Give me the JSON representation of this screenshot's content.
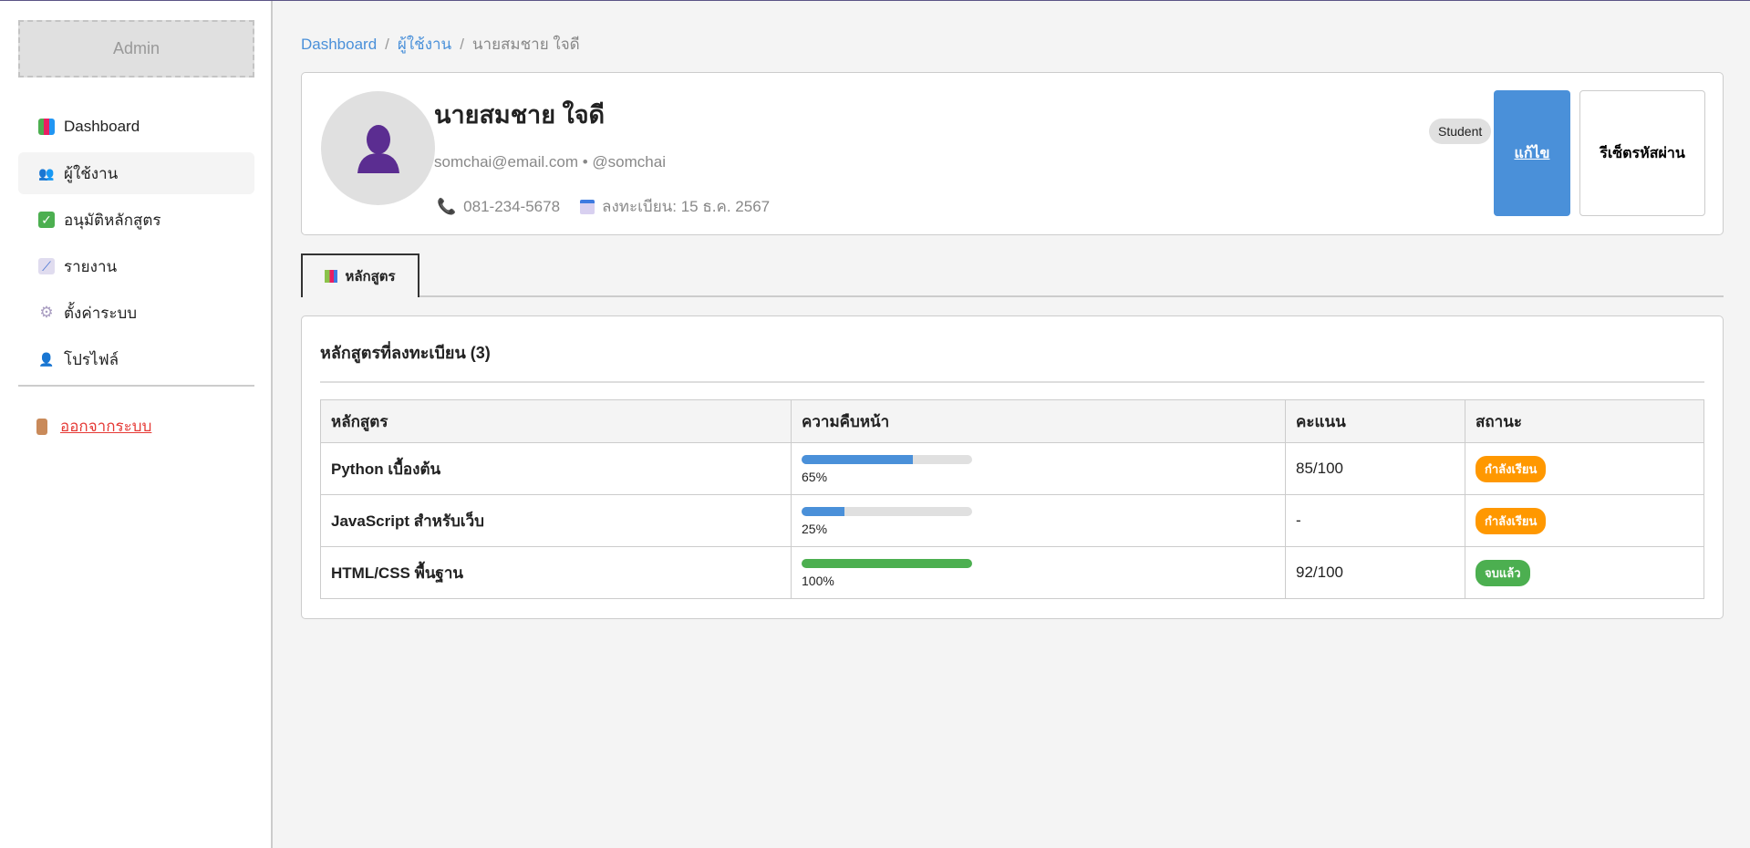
{
  "sidebar": {
    "logo": "Admin",
    "items": [
      {
        "label": "Dashboard",
        "icon": "bar-chart-icon"
      },
      {
        "label": "ผู้ใช้งาน",
        "icon": "users-icon",
        "active": true
      },
      {
        "label": "อนุมัติหลักสูตร",
        "icon": "check-icon"
      },
      {
        "label": "รายงาน",
        "icon": "line-chart-icon"
      },
      {
        "label": "ตั้งค่าระบบ",
        "icon": "gear-icon"
      },
      {
        "label": "โปรไฟล์",
        "icon": "user-icon"
      }
    ],
    "logout": "ออกจากระบบ"
  },
  "breadcrumb": [
    "Dashboard",
    "ผู้ใช้งาน",
    "นายสมชาย ใจดี"
  ],
  "profile": {
    "name": "นายสมชาย ใจดี",
    "email": "somchai@email.com",
    "username": "@somchai",
    "sub": "somchai@email.com • @somchai",
    "phone": "081-234-5678",
    "registered": "ลงทะเบียน: 15 ธ.ค. 2567",
    "role": "Student",
    "edit": "แก้ไข",
    "reset": "รีเซ็ตรหัสผ่าน"
  },
  "tabs": [
    {
      "label": "หลักสูตร",
      "icon": "books-icon"
    }
  ],
  "courses": {
    "title": "หลักสูตรที่ลงทะเบียน (3)",
    "headers": [
      "หลักสูตร",
      "ความคืบหน้า",
      "คะแนน",
      "สถานะ"
    ],
    "rows": [
      {
        "name": "Python เบื้องต้น",
        "progress": 65,
        "progress_label": "65%",
        "score": "85/100",
        "status": "กำลังเรียน",
        "status_color": "#ff9800",
        "bar_color": "#4a90d9"
      },
      {
        "name": "JavaScript สำหรับเว็บ",
        "progress": 25,
        "progress_label": "25%",
        "score": "-",
        "status": "กำลังเรียน",
        "status_color": "#ff9800",
        "bar_color": "#4a90d9"
      },
      {
        "name": "HTML/CSS พื้นฐาน",
        "progress": 100,
        "progress_label": "100%",
        "score": "92/100",
        "status": "จบแล้ว",
        "status_color": "#4caf50",
        "bar_color": "#4caf50"
      }
    ]
  },
  "colors": {
    "primary": "#4a90d9",
    "warning": "#ff9800",
    "success": "#4caf50",
    "danger": "#e53935"
  }
}
